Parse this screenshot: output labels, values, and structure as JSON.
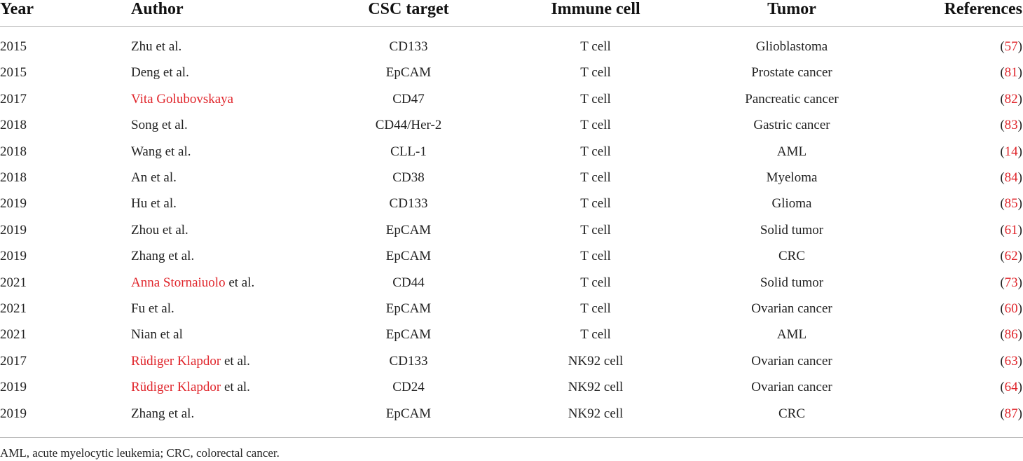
{
  "table": {
    "header": [
      "Year",
      "Author",
      "CSC target",
      "Immune cell",
      "Tumor",
      "References"
    ],
    "rows": [
      [
        "2015",
        "Zhu et al.",
        "CD133",
        "T cell",
        "Glioblastoma",
        "(57)"
      ],
      [
        "2015",
        "Deng et al.",
        "EpCAM",
        "T cell",
        "Prostate cancer",
        "(81)"
      ],
      [
        "2017",
        {
          "link": "Vita Golubovskaya"
        },
        "CD47",
        "T cell",
        "Pancreatic cancer",
        "(82)"
      ],
      [
        "2018",
        "Song et al.",
        "CD44/Her-2",
        "T cell",
        "Gastric cancer",
        "(83)"
      ],
      [
        "2018",
        "Wang et al.",
        "CLL-1",
        "T cell",
        "AML",
        "(14)"
      ],
      [
        "2018",
        "An et al.",
        "CD38",
        "T cell",
        "Myeloma",
        "(84)"
      ],
      [
        "2019",
        "Hu et al.",
        "CD133",
        "T cell",
        "Glioma",
        "(85)"
      ],
      [
        "2019",
        "Zhou et al.",
        "EpCAM",
        "T cell",
        "Solid tumor",
        "(61)"
      ],
      [
        "2019",
        "Zhang et al.",
        "EpCAM",
        "T cell",
        "CRC",
        "(62)"
      ],
      [
        "2021",
        {
          "link": "Anna Stornaiuolo",
          "rest": " et al."
        },
        "CD44",
        "T cell",
        "Solid tumor",
        "(73)"
      ],
      [
        "2021",
        "Fu et al.",
        "EpCAM",
        "T cell",
        "Ovarian cancer",
        "(60)"
      ],
      [
        "2021",
        "Nian et al",
        "EpCAM",
        "T cell",
        "AML",
        "(86)"
      ],
      [
        "2017",
        {
          "link": "Rüdiger Klapdor",
          "rest": " et al."
        },
        "CD133",
        "NK92 cell",
        "Ovarian cancer",
        "(63)"
      ],
      [
        "2019",
        {
          "link": "Rüdiger Klapdor",
          "rest": " et al."
        },
        "CD24",
        "NK92 cell",
        "Ovarian cancer",
        "(64)"
      ],
      [
        "2019",
        "Zhang et al.",
        "EpCAM",
        "NK92 cell",
        "CRC",
        "(87)"
      ]
    ],
    "footnote": "AML, acute myelocytic leukemia; CRC, colorectal cancer."
  }
}
